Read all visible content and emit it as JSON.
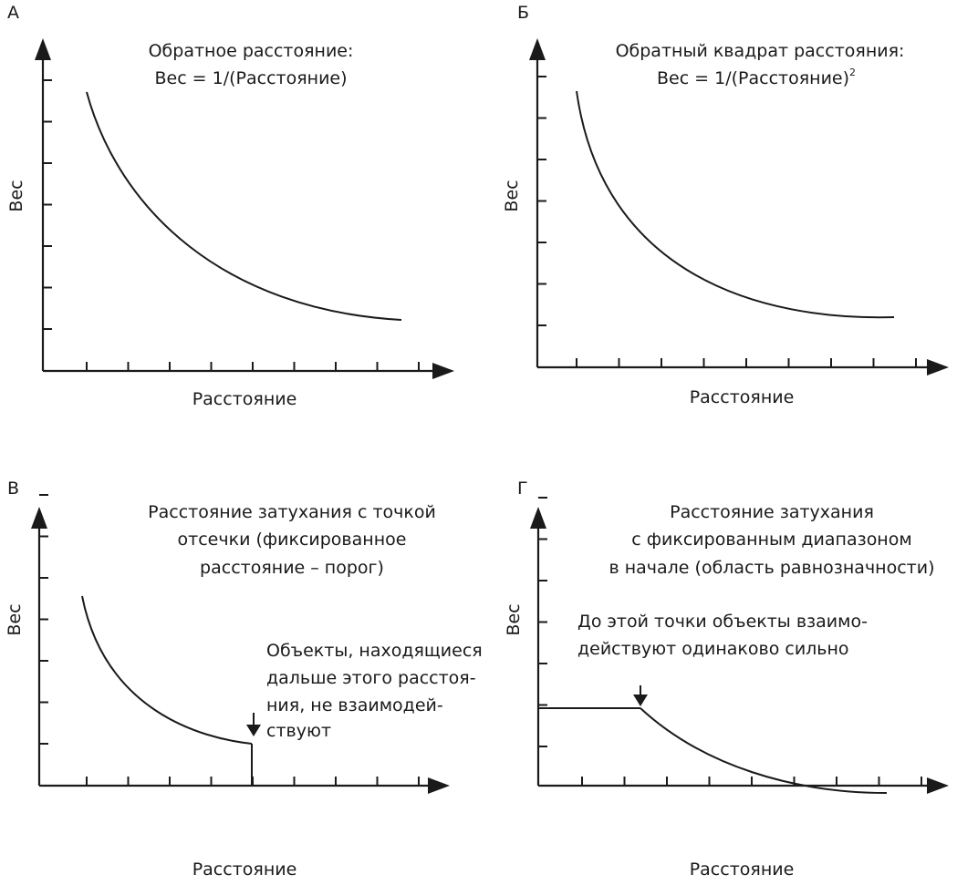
{
  "chart_data": [
    {
      "panel": "А",
      "type": "line",
      "title": [
        "Обратное расстояние:",
        "Вес = 1/(Расстояние)"
      ],
      "xlabel": "Расстояние",
      "ylabel": "Вес",
      "x_ticks": 9,
      "y_ticks": 7,
      "series": [
        {
          "x": [
            1,
            8
          ],
          "y": [
            6.3,
            1.3
          ]
        }
      ]
    },
    {
      "panel": "Б",
      "type": "line",
      "title": [
        "Обратный квадрат расстояния:",
        "Вес = 1/(Расстояние)"
      ],
      "title_superscript": "2",
      "xlabel": "Расстояние",
      "ylabel": "Вес",
      "x_ticks": 9,
      "y_ticks": 7,
      "series": [
        {
          "x": [
            1,
            8
          ],
          "y": [
            6.3,
            1.3
          ]
        }
      ]
    },
    {
      "panel": "В",
      "type": "line",
      "title": [
        "Расстояние затухания с точкой",
        "отсечки (фиксированное",
        "расстояние – порог)"
      ],
      "xlabel": "Расстояние",
      "ylabel": "Вес",
      "x_ticks": 9,
      "y_ticks": 7,
      "cutoff_x": 5,
      "annotation": [
        "Объекты, находящиеся",
        "дальше этого расстоя-",
        "ния, не взаимодей-",
        "ствуют"
      ],
      "series": [
        {
          "x": [
            1,
            5
          ],
          "y": [
            6.3,
            1.8
          ]
        }
      ]
    },
    {
      "panel": "Г",
      "type": "line",
      "title": [
        "Расстояние затухания",
        "с фиксированным диапазоном",
        "в начале (область равнозначности)"
      ],
      "xlabel": "Расстояние",
      "ylabel": "Вес",
      "x_ticks": 9,
      "y_ticks": 7,
      "plateau_end_x": 2.3,
      "plateau_y": 3.3,
      "annotation": [
        "До этой точки объекты взаимо-",
        "действуют одинаково сильно"
      ],
      "series": [
        {
          "x": [
            0,
            8.2
          ],
          "y": [
            3.3,
            1.4
          ]
        }
      ]
    }
  ]
}
